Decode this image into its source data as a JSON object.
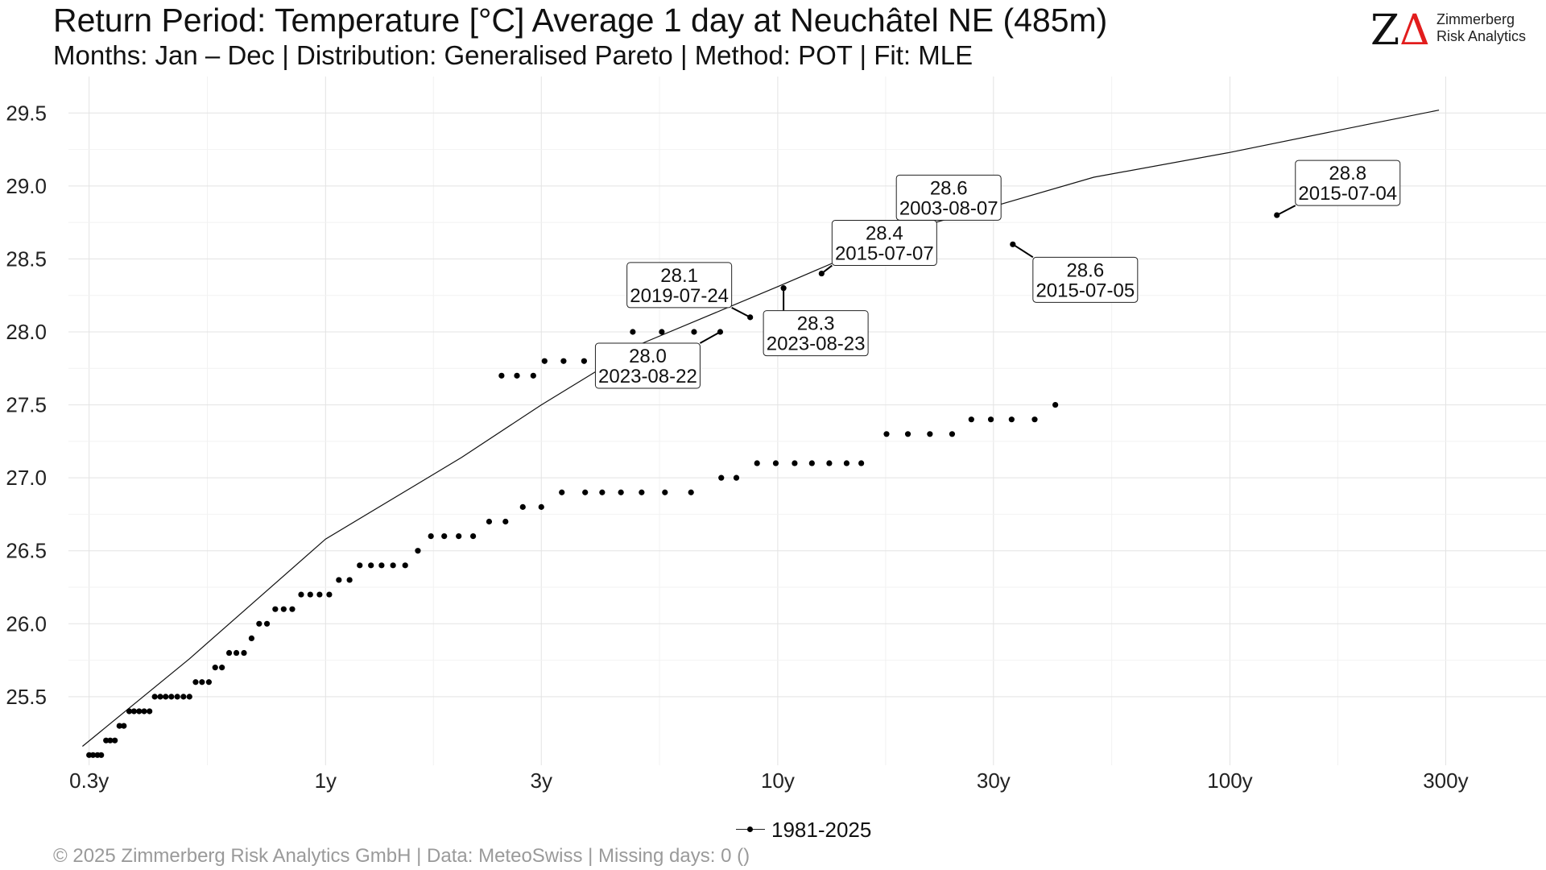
{
  "header": {
    "title": "Return Period: Temperature [°C] Average 1 day at Neuchâtel  NE (485m)",
    "subtitle": "Months: Jan – Dec | Distribution: Generalised Pareto | Method: POT | Fit: MLE"
  },
  "logo": {
    "mark_z": "Z",
    "mark_delta": "Δ",
    "line1": "Zimmerberg",
    "line2": "Risk Analytics",
    "accent_color": "#e21d1d"
  },
  "footer": {
    "text": "©  2025 Zimmerberg Risk Analytics GmbH | Data: MeteoSwiss | Missing days: 0 ()"
  },
  "chart_data": {
    "type": "scatter",
    "x_scale": "log",
    "x_unit": "return period (years)",
    "xlim": [
      0.27,
      500
    ],
    "ylim": [
      25.03,
      29.75
    ],
    "x_ticks": [
      {
        "value": 0.3,
        "label": "0.3y"
      },
      {
        "value": 1,
        "label": "1y"
      },
      {
        "value": 3,
        "label": "3y"
      },
      {
        "value": 10,
        "label": "10y"
      },
      {
        "value": 30,
        "label": "30y"
      },
      {
        "value": 100,
        "label": "100y"
      },
      {
        "value": 300,
        "label": "300y"
      }
    ],
    "y_ticks": [
      {
        "value": 25.5,
        "label": "25.5"
      },
      {
        "value": 26.0,
        "label": "26.0"
      },
      {
        "value": 26.5,
        "label": "26.5"
      },
      {
        "value": 27.0,
        "label": "27.0"
      },
      {
        "value": 27.5,
        "label": "27.5"
      },
      {
        "value": 28.0,
        "label": "28.0"
      },
      {
        "value": 28.5,
        "label": "28.5"
      },
      {
        "value": 29.0,
        "label": "29.0"
      },
      {
        "value": 29.5,
        "label": "29.5"
      }
    ],
    "grid": true,
    "legend": {
      "position": "bottom",
      "entries": [
        "1981-2025"
      ]
    },
    "series": [
      {
        "name": "1981-2025",
        "points": [
          [
            0.3,
            25.1
          ],
          [
            0.306,
            25.1
          ],
          [
            0.313,
            25.1
          ],
          [
            0.319,
            25.1
          ],
          [
            0.327,
            25.2
          ],
          [
            0.334,
            25.2
          ],
          [
            0.342,
            25.2
          ],
          [
            0.35,
            25.3
          ],
          [
            0.358,
            25.3
          ],
          [
            0.368,
            25.4
          ],
          [
            0.377,
            25.4
          ],
          [
            0.387,
            25.4
          ],
          [
            0.397,
            25.4
          ],
          [
            0.408,
            25.4
          ],
          [
            0.419,
            25.5
          ],
          [
            0.431,
            25.5
          ],
          [
            0.443,
            25.5
          ],
          [
            0.456,
            25.5
          ],
          [
            0.47,
            25.5
          ],
          [
            0.485,
            25.5
          ],
          [
            0.5,
            25.5
          ],
          [
            0.516,
            25.6
          ],
          [
            0.533,
            25.6
          ],
          [
            0.552,
            25.6
          ],
          [
            0.57,
            25.7
          ],
          [
            0.59,
            25.7
          ],
          [
            0.612,
            25.8
          ],
          [
            0.635,
            25.8
          ],
          [
            0.66,
            25.8
          ],
          [
            0.686,
            25.9
          ],
          [
            0.713,
            26.0
          ],
          [
            0.742,
            26.0
          ],
          [
            0.774,
            26.1
          ],
          [
            0.808,
            26.1
          ],
          [
            0.844,
            26.1
          ],
          [
            0.883,
            26.2
          ],
          [
            0.925,
            26.2
          ],
          [
            0.97,
            26.2
          ],
          [
            1.019,
            26.2
          ],
          [
            1.07,
            26.3
          ],
          [
            1.13,
            26.3
          ],
          [
            1.19,
            26.4
          ],
          [
            1.26,
            26.4
          ],
          [
            1.33,
            26.4
          ],
          [
            1.41,
            26.4
          ],
          [
            1.5,
            26.4
          ],
          [
            1.6,
            26.5
          ],
          [
            1.71,
            26.6
          ],
          [
            1.83,
            26.6
          ],
          [
            1.97,
            26.6
          ],
          [
            2.12,
            26.6
          ],
          [
            2.3,
            26.7
          ],
          [
            2.5,
            26.7
          ],
          [
            2.73,
            26.8
          ],
          [
            3.0,
            26.8
          ],
          [
            3.33,
            26.9
          ],
          [
            3.75,
            26.9
          ],
          [
            4.09,
            26.9
          ],
          [
            4.5,
            26.9
          ],
          [
            5.0,
            26.9
          ],
          [
            5.63,
            26.9
          ],
          [
            6.43,
            26.9
          ],
          [
            7.5,
            27.0
          ],
          [
            8.1,
            27.0
          ],
          [
            9.0,
            27.1
          ],
          [
            9.9,
            27.1
          ],
          [
            10.9,
            27.1
          ],
          [
            11.9,
            27.1
          ],
          [
            13.0,
            27.1
          ],
          [
            14.2,
            27.1
          ],
          [
            15.3,
            27.1
          ],
          [
            17.4,
            27.3
          ],
          [
            19.4,
            27.3
          ],
          [
            21.7,
            27.3
          ],
          [
            24.3,
            27.3
          ],
          [
            26.8,
            27.4
          ],
          [
            29.6,
            27.4
          ],
          [
            32.9,
            27.4
          ],
          [
            37.0,
            27.4
          ],
          [
            41.1,
            27.5
          ],
          [
            2.45,
            27.7
          ],
          [
            2.65,
            27.7
          ],
          [
            2.88,
            27.7
          ],
          [
            3.05,
            27.8
          ],
          [
            3.36,
            27.8
          ],
          [
            3.73,
            27.8
          ],
          [
            4.78,
            28.0
          ],
          [
            5.54,
            28.0
          ],
          [
            6.53,
            28.0
          ],
          [
            7.46,
            28.0
          ],
          [
            8.69,
            28.1
          ],
          [
            10.3,
            28.3
          ],
          [
            12.5,
            28.4
          ],
          [
            22.0,
            28.6
          ],
          [
            33.1,
            28.6
          ],
          [
            127,
            28.8
          ]
        ]
      }
    ],
    "fit_curve": {
      "points": [
        [
          0.29,
          25.16
        ],
        [
          0.5,
          25.76
        ],
        [
          1.0,
          26.58
        ],
        [
          2.0,
          27.14
        ],
        [
          3.0,
          27.5
        ],
        [
          5.0,
          27.92
        ],
        [
          10.0,
          28.31
        ],
        [
          20.0,
          28.71
        ],
        [
          30.0,
          28.86
        ],
        [
          50.0,
          29.06
        ],
        [
          100.0,
          29.23
        ],
        [
          200.0,
          29.42
        ],
        [
          290.0,
          29.52
        ]
      ]
    },
    "annotations": [
      {
        "value": "28.8",
        "date": "2015-07-04",
        "point": [
          127,
          28.8
        ]
      },
      {
        "value": "28.6",
        "date": "2003-08-07",
        "point": [
          22.0,
          28.6
        ]
      },
      {
        "value": "28.6",
        "date": "2015-07-05",
        "point": [
          33.1,
          28.6
        ]
      },
      {
        "value": "28.4",
        "date": "2015-07-07",
        "point": [
          12.5,
          28.4
        ]
      },
      {
        "value": "28.3",
        "date": "2023-08-23",
        "point": [
          10.3,
          28.3
        ]
      },
      {
        "value": "28.1",
        "date": "2019-07-24",
        "point": [
          8.69,
          28.1
        ]
      },
      {
        "value": "28.0",
        "date": "2023-08-22",
        "point": [
          7.46,
          28.0
        ]
      }
    ]
  }
}
